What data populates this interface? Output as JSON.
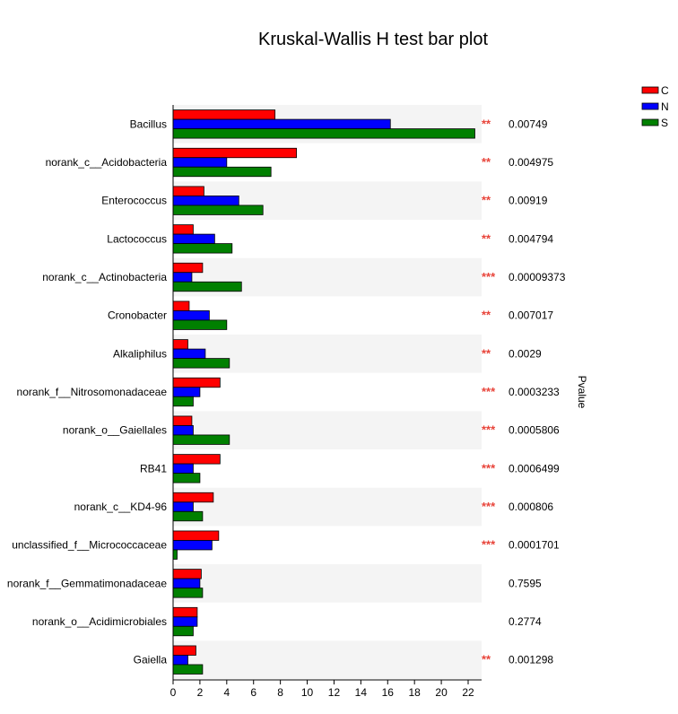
{
  "chart_data": {
    "type": "bar",
    "orientation": "horizontal",
    "title": "Kruskal-Wallis H test bar plot",
    "pvalue_axis_label": "Pvalue",
    "categories": [
      "Bacillus",
      "norank_c__Acidobacteria",
      "Enterococcus",
      "Lactococcus",
      "norank_c__Actinobacteria",
      "Cronobacter",
      "Alkaliphilus",
      "norank_f__Nitrosomonadaceae",
      "norank_o__Gaiellales",
      "RB41",
      "norank_c__KD4-96",
      "unclassified_f__Micrococcaceae",
      "norank_f__Gemmatimonadaceae",
      "norank_o__Acidimicrobiales",
      "Gaiella"
    ],
    "series": [
      {
        "name": "C",
        "color": "#ff0000",
        "values": [
          7.6,
          9.2,
          2.3,
          1.5,
          2.2,
          1.2,
          1.1,
          3.5,
          1.4,
          3.5,
          3.0,
          3.4,
          2.1,
          1.8,
          1.7
        ]
      },
      {
        "name": "N",
        "color": "#0000ff",
        "values": [
          16.2,
          4.0,
          4.9,
          3.1,
          1.4,
          2.7,
          2.4,
          2.0,
          1.5,
          1.5,
          1.5,
          2.9,
          2.0,
          1.8,
          1.1
        ]
      },
      {
        "name": "S",
        "color": "#008000",
        "values": [
          22.5,
          7.3,
          6.7,
          4.4,
          5.1,
          4.0,
          4.2,
          1.5,
          4.2,
          2.0,
          2.2,
          0.3,
          2.2,
          1.5,
          2.2
        ]
      }
    ],
    "significance": [
      "**",
      "**",
      "**",
      "**",
      "***",
      "**",
      "**",
      "***",
      "***",
      "***",
      "***",
      "***",
      "",
      "",
      "**"
    ],
    "pvalues": [
      "0.00749",
      "0.004975",
      "0.00919",
      "0.004794",
      "0.00009373",
      "0.007017",
      "0.0029",
      "0.0003233",
      "0.0005806",
      "0.0006499",
      "0.000806",
      "0.0001701",
      "0.7595",
      "0.2774",
      "0.001298"
    ],
    "xlim": [
      0,
      23
    ],
    "xticks": [
      0,
      2,
      4,
      6,
      8,
      10,
      12,
      14,
      16,
      18,
      20,
      22
    ],
    "legend_position": "top-right",
    "alternating_row_shading": true,
    "shade_color": "#f4f4f4",
    "star_color": "#e8443a"
  }
}
